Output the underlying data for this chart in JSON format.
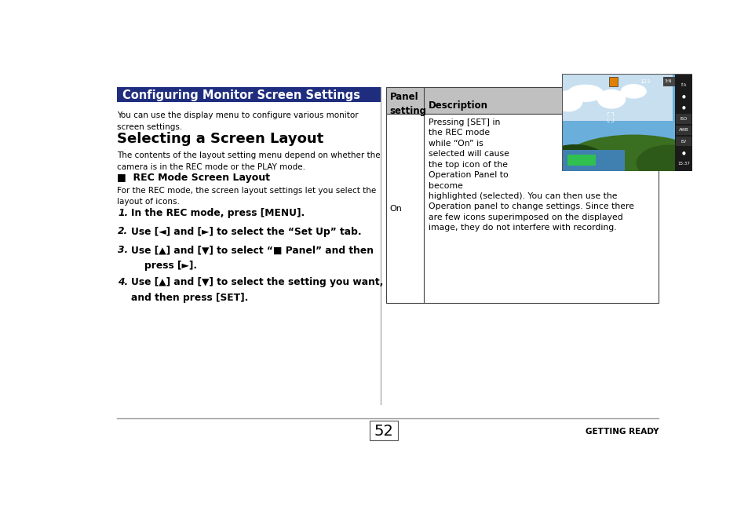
{
  "page_bg": "#ffffff",
  "title_bg": "#1f2d7e",
  "title_text": "Configuring Monitor Screen Settings",
  "title_text_color": "#ffffff",
  "title_fontsize": 10.5,
  "body_text_color": "#000000",
  "header_bg": "#c0c0c0",
  "intro_text": "You can use the display menu to configure various monitor\nscreen settings.",
  "section_title": "Selecting a Screen Layout",
  "section_intro": "The contents of the layout setting menu depend on whether the\ncamera is in the REC mode or the PLAY mode.",
  "subsection_title": "■  REC Mode Screen Layout",
  "subsection_text": "For the REC mode, the screen layout settings let you select the\nlayout of icons.",
  "steps": [
    "In the REC mode, press [MENU].",
    "Use [◄] and [►] to select the “Set Up” tab.",
    "Use [▲] and [▼] to select “■ Panel” and then\n    press [►].",
    "Use [▲] and [▼] to select the setting you want,\nand then press [SET]."
  ],
  "table_header_col1": "Panel\nsetting",
  "table_header_col2": "Description",
  "table_row_col1": "On",
  "table_row_text_lines": [
    "Pressing [SET] in",
    "the REC mode",
    "while “On” is",
    "selected will cause",
    "the top icon of the",
    "Operation Panel to",
    "become",
    "highlighted (selected). You can then use the",
    "Operation panel to change settings. Since there",
    "are few icons superimposed on the displayed",
    "image, they do not interfere with recording."
  ],
  "page_number": "52",
  "footer_right": "GETTING READY",
  "divider_color": "#999999"
}
